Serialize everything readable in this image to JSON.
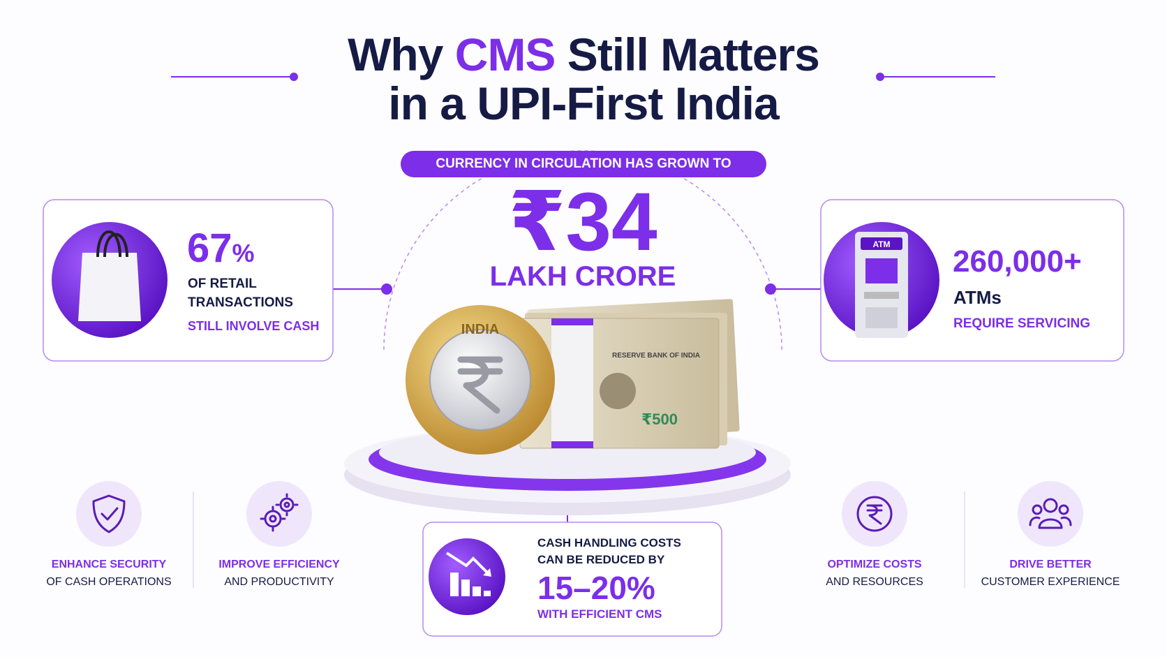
{
  "header": {
    "title_parts": [
      "Why",
      "CMS",
      "Still Matters"
    ],
    "title_line2": "in a UPI-First India"
  },
  "hero": {
    "badge": "CURRENCY IN CIRCULATION HAS GROWN TO",
    "amount": "₹34",
    "unit": "LAKH CRORE",
    "coin_text": "INDIA",
    "note_text": "RESERVE BANK OF INDIA",
    "note_value": "₹500"
  },
  "stats": [
    {
      "value": "67",
      "suffix": "%",
      "lines": [
        "OF RETAIL",
        "TRANSACTIONS",
        "STILL INVOLVE CASH"
      ]
    },
    {
      "value": "260,000+",
      "icon_label": "ATM",
      "lines": [
        "ATMs",
        "REQUIRE SERVICING"
      ]
    }
  ],
  "savings": {
    "lines": [
      "CASH HANDLING COSTS",
      "CAN BE REDUCED BY"
    ],
    "value": "15–20%",
    "footer": "WITH EFFICIENT CMS"
  },
  "benefits": [
    {
      "title": "ENHANCE SECURITY",
      "subtitle": "OF CASH OPERATIONS"
    },
    {
      "title": "IMPROVE EFFICIENCY",
      "subtitle": "AND PRODUCTIVITY"
    },
    {
      "title": "OPTIMIZE COSTS",
      "subtitle": "AND RESOURCES"
    },
    {
      "title": "DRIVE BETTER",
      "subtitle": "CUSTOMER EXPERIENCE"
    }
  ]
}
